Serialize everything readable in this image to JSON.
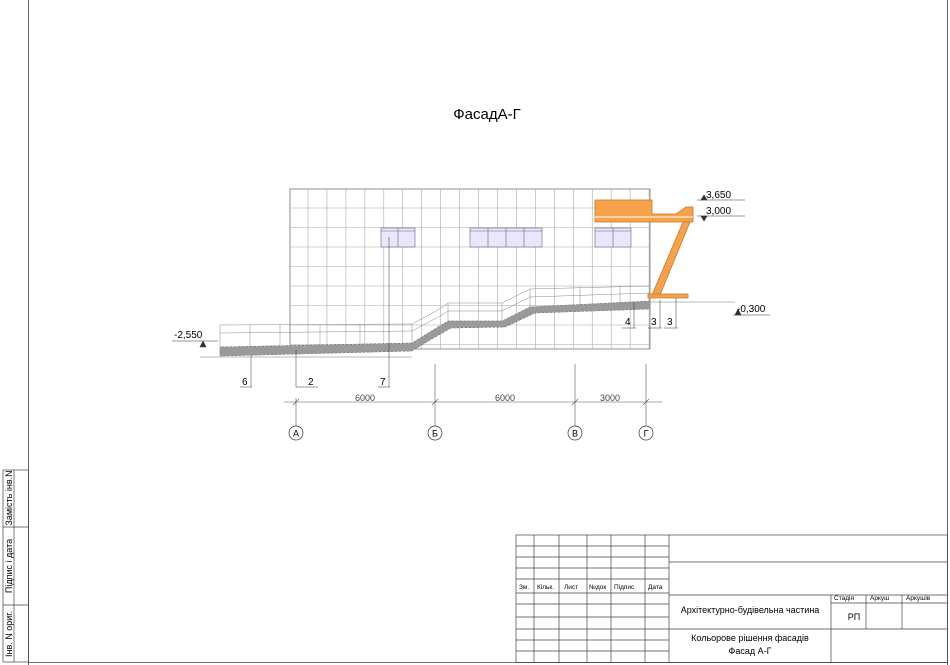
{
  "drawing": {
    "title": "ФасадА-Г",
    "levels": {
      "top": "3,650",
      "canopy": "3,000",
      "right_ground": "-0,300",
      "left_ground": "-2,550"
    },
    "callouts_right": [
      "4",
      "3",
      "3"
    ],
    "callouts_bottom": [
      "6",
      "2",
      "7"
    ],
    "dimensions": [
      "6000",
      "6000",
      "3000"
    ],
    "axes": [
      "А",
      "Б",
      "В",
      "Г"
    ],
    "colors": {
      "canopy": "#f5a24a",
      "canopy_edge": "#c77a2a",
      "window": "#ece9ff",
      "grid": "#9a9a9a",
      "paving": "#8a8a8a"
    }
  },
  "side_stamps": [
    "Замість інв.N",
    "Підпис і дата",
    "Інв. N ориг."
  ],
  "title_block": {
    "columns": [
      "Зм.",
      "Кільк.",
      "Лист",
      "№док",
      "Підпис",
      "Дата"
    ],
    "project": "Архітектурно-будівельна частина",
    "sheet_title_line1": "Кольорове рішення фасадів",
    "sheet_title_line2": "Фасад А-Г",
    "stage_label": "Стадія",
    "sheet_label": "Аркуш",
    "sheets_label": "Аркушів",
    "stage_value": "РП"
  }
}
